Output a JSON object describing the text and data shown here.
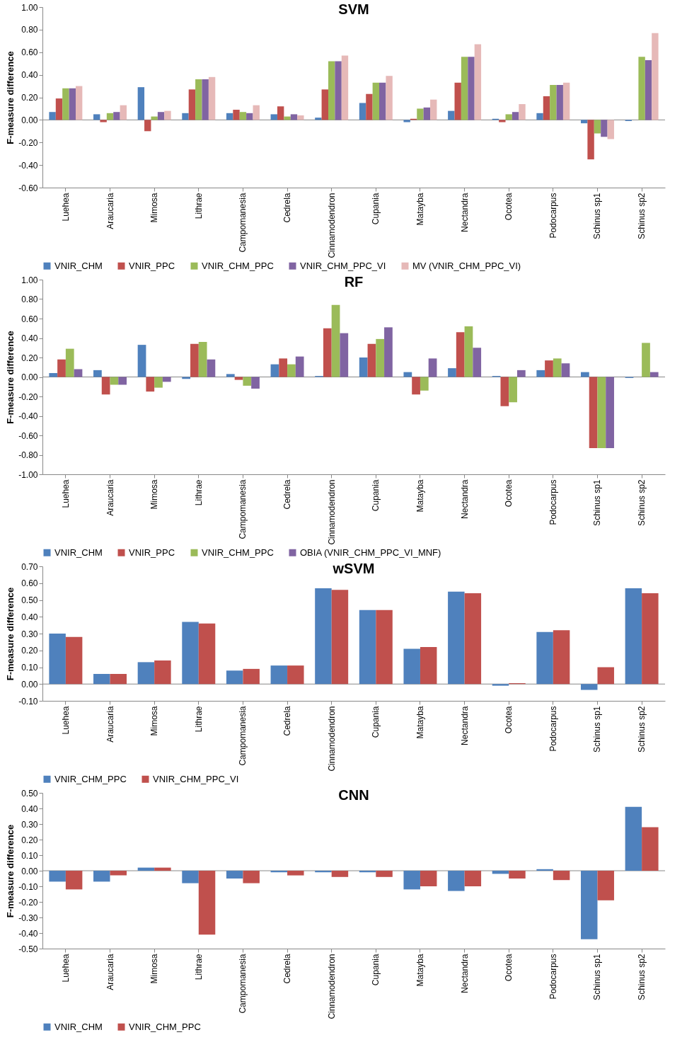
{
  "chart_data": [
    {
      "type": "bar",
      "title": "SVM",
      "ylabel": "F-measure difference",
      "categories": [
        "Luehea",
        "Araucaria",
        "Mimosa",
        "Lithrae",
        "Campomanesia",
        "Cedrela",
        "Cinnamodendron",
        "Cupania",
        "Matayba",
        "Nectandra",
        "Ocotea",
        "Podocarpus",
        "Schinus sp1",
        "Schinus sp2"
      ],
      "series": [
        {
          "name": "VNIR_CHM",
          "color": "#4f81bd",
          "values": [
            0.07,
            0.05,
            0.29,
            0.06,
            0.06,
            0.05,
            0.02,
            0.15,
            -0.02,
            0.08,
            0.01,
            0.06,
            -0.03,
            -0.01
          ]
        },
        {
          "name": "VNIR_PPC",
          "color": "#c0504d",
          "values": [
            0.19,
            -0.02,
            -0.1,
            0.27,
            0.09,
            0.12,
            0.27,
            0.23,
            0.01,
            0.33,
            -0.02,
            0.21,
            -0.35,
            0.0
          ]
        },
        {
          "name": "VNIR_CHM_PPC",
          "color": "#9bbb59",
          "values": [
            0.28,
            0.06,
            0.03,
            0.36,
            0.07,
            0.03,
            0.52,
            0.33,
            0.1,
            0.56,
            0.05,
            0.31,
            -0.12,
            0.56
          ]
        },
        {
          "name": "VNIR_CHM_PPC_VI",
          "color": "#8064a2",
          "values": [
            0.28,
            0.07,
            0.07,
            0.36,
            0.06,
            0.05,
            0.52,
            0.33,
            0.11,
            0.56,
            0.07,
            0.31,
            -0.15,
            0.53
          ]
        },
        {
          "name": "MV (VNIR_CHM_PPC_VI)",
          "color": "#e6b9b8",
          "values": [
            0.3,
            0.13,
            0.08,
            0.38,
            0.13,
            0.04,
            0.57,
            0.39,
            0.18,
            0.67,
            0.14,
            0.33,
            -0.17,
            0.77
          ]
        }
      ],
      "ylim": [
        -0.6,
        1.0
      ],
      "yticks": [
        {
          "value": -0.6,
          "label": "-0.60"
        },
        {
          "value": -0.4,
          "label": "-0.40"
        },
        {
          "value": -0.2,
          "label": "-0.20"
        },
        {
          "value": 0,
          "label": "0.00"
        },
        {
          "value": 0.2,
          "label": "0.20"
        },
        {
          "value": 0.4,
          "label": "0.40"
        },
        {
          "value": 0.6,
          "label": "0.60"
        },
        {
          "value": 0.8,
          "label": "0.80"
        },
        {
          "value": 1,
          "label": "1.00"
        }
      ],
      "legend": "bottom"
    },
    {
      "type": "bar",
      "title": "RF",
      "ylabel": "F-measure difference",
      "categories": [
        "Luehea",
        "Araucaria",
        "Mimosa",
        "Lithrae",
        "Campomanesia",
        "Cedrela",
        "Cinnamodendron",
        "Cupania",
        "Matayba",
        "Nectandra",
        "Ocotea",
        "Podocarpus",
        "Schinus sp1",
        "Schinus sp2"
      ],
      "series": [
        {
          "name": "VNIR_CHM",
          "color": "#4f81bd",
          "values": [
            0.04,
            0.07,
            0.33,
            -0.02,
            0.03,
            0.13,
            0.01,
            0.2,
            0.05,
            0.09,
            0.01,
            0.07,
            0.05,
            -0.01
          ]
        },
        {
          "name": "VNIR_PPC",
          "color": "#c0504d",
          "values": [
            0.18,
            -0.18,
            -0.15,
            0.34,
            -0.03,
            0.19,
            0.5,
            0.34,
            -0.18,
            0.46,
            -0.3,
            0.17,
            -0.73,
            0.0
          ]
        },
        {
          "name": "VNIR_CHM_PPC",
          "color": "#9bbb59",
          "values": [
            0.29,
            -0.08,
            -0.11,
            0.36,
            -0.09,
            0.13,
            0.74,
            0.39,
            -0.14,
            0.52,
            -0.26,
            0.19,
            -0.73,
            0.35
          ]
        },
        {
          "name": "OBIA (VNIR_CHM_PPC_VI_MNF)",
          "color": "#8064a2",
          "values": [
            0.08,
            -0.08,
            -0.05,
            0.18,
            -0.12,
            0.21,
            0.45,
            0.51,
            0.19,
            0.3,
            0.07,
            0.14,
            -0.73,
            0.05
          ]
        }
      ],
      "ylim": [
        -1.0,
        1.0
      ],
      "yticks": [
        {
          "value": -1,
          "label": "-1.00"
        },
        {
          "value": -0.8,
          "label": "-0.80"
        },
        {
          "value": -0.6,
          "label": "-0.60"
        },
        {
          "value": -0.4,
          "label": "-0.40"
        },
        {
          "value": -0.2,
          "label": "-0.20"
        },
        {
          "value": 0,
          "label": "0.00"
        },
        {
          "value": 0.2,
          "label": "0.20"
        },
        {
          "value": 0.4,
          "label": "0.40"
        },
        {
          "value": 0.6,
          "label": "0.60"
        },
        {
          "value": 0.8,
          "label": "0.80"
        },
        {
          "value": 1,
          "label": "1.00"
        }
      ],
      "legend": "bottom"
    },
    {
      "type": "bar",
      "title": "wSVM",
      "ylabel": "F-measure difference",
      "categories": [
        "Luehea",
        "Araucaria",
        "Mimosa",
        "Lithrae",
        "Campomanesia",
        "Cedrela",
        "Cinnamodendron",
        "Cupania",
        "Matayba",
        "Nectandra",
        "Ocotea",
        "Podocarpus",
        "Schinus sp1",
        "Schinus sp2"
      ],
      "series": [
        {
          "name": "VNIR_CHM_PPC",
          "color": "#4f81bd",
          "values": [
            0.3,
            0.06,
            0.13,
            0.37,
            0.08,
            0.11,
            0.57,
            0.44,
            0.21,
            0.55,
            -0.01,
            0.31,
            -0.035,
            0.57
          ]
        },
        {
          "name": "VNIR_CHM_PPC_VI",
          "color": "#c0504d",
          "values": [
            0.28,
            0.06,
            0.14,
            0.36,
            0.09,
            0.11,
            0.56,
            0.44,
            0.22,
            0.54,
            0.005,
            0.32,
            0.1,
            0.54
          ]
        }
      ],
      "ylim": [
        -0.1,
        0.7
      ],
      "yticks": [
        {
          "value": -0.1,
          "label": "-0.10"
        },
        {
          "value": 0,
          "label": "0.00"
        },
        {
          "value": 0.1,
          "label": "0.10"
        },
        {
          "value": 0.2,
          "label": "0.20"
        },
        {
          "value": 0.3,
          "label": "0.30"
        },
        {
          "value": 0.4,
          "label": "0.40"
        },
        {
          "value": 0.5,
          "label": "0.50"
        },
        {
          "value": 0.6,
          "label": "0.60"
        },
        {
          "value": 0.7,
          "label": "0.70"
        }
      ],
      "legend": "bottom"
    },
    {
      "type": "bar",
      "title": "CNN",
      "ylabel": "F-measure difference",
      "categories": [
        "Luehea",
        "Araucaria",
        "Mimosa",
        "Lithrae",
        "Campomanesia",
        "Cedrela",
        "Cinnamodendron",
        "Cupania",
        "Matayba",
        "Nectandra",
        "Ocotea",
        "Podocarpus",
        "Schinus sp1",
        "Schinus sp2"
      ],
      "series": [
        {
          "name": "VNIR_CHM",
          "color": "#4f81bd",
          "values": [
            -0.07,
            -0.07,
            0.02,
            -0.08,
            -0.05,
            -0.01,
            -0.01,
            -0.01,
            -0.12,
            -0.13,
            -0.02,
            0.01,
            -0.44,
            0.41
          ]
        },
        {
          "name": "VNIR_CHM_PPC",
          "color": "#c0504d",
          "values": [
            -0.12,
            -0.03,
            0.02,
            -0.41,
            -0.08,
            -0.03,
            -0.04,
            -0.04,
            -0.1,
            -0.1,
            -0.05,
            -0.06,
            -0.19,
            0.28
          ]
        }
      ],
      "ylim": [
        -0.5,
        0.5
      ],
      "yticks": [
        {
          "value": -0.5,
          "label": "-0.50"
        },
        {
          "value": -0.4,
          "label": "-0.40"
        },
        {
          "value": -0.3,
          "label": "-0.30"
        },
        {
          "value": -0.2,
          "label": "-0.20"
        },
        {
          "value": -0.1,
          "label": "-0.10"
        },
        {
          "value": 0,
          "label": "0.00"
        },
        {
          "value": 0.1,
          "label": "0.10"
        },
        {
          "value": 0.2,
          "label": "0.20"
        },
        {
          "value": 0.3,
          "label": "0.30"
        },
        {
          "value": 0.4,
          "label": "0.40"
        },
        {
          "value": 0.5,
          "label": "0.50"
        }
      ],
      "legend": "bottom"
    }
  ]
}
